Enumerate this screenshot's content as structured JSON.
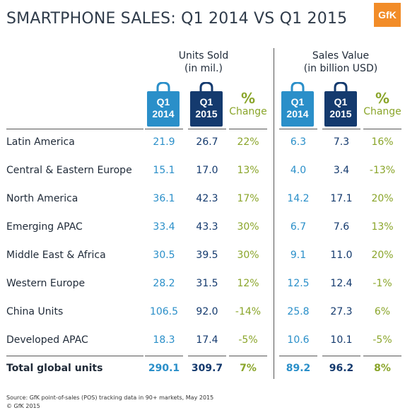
{
  "title": "SMARTPHONE SALES: Q1 2014 VS Q1 2015",
  "logo_text": "GfK",
  "colors": {
    "q1_2014": "#2a8fc9",
    "q1_2015": "#143a6e",
    "change": "#8aa52a",
    "logo": "#f28c28"
  },
  "groups": [
    {
      "label_line1": "Units Sold",
      "label_line2": "(in mil.)"
    },
    {
      "label_line1": "Sales Value",
      "label_line2": "(in billion USD)"
    }
  ],
  "column_headers": {
    "q1_2014": {
      "line1": "Q1",
      "line2": "2014"
    },
    "q1_2015": {
      "line1": "Q1",
      "line2": "2015"
    },
    "change": {
      "symbol": "%",
      "label": "Change"
    }
  },
  "chart_data": {
    "type": "table",
    "title": "SMARTPHONE SALES: Q1 2014 VS Q1 2015",
    "columns": [
      "Units Sold Q1 2014",
      "Units Sold Q1 2015",
      "Units Sold % Change",
      "Sales Value Q1 2014",
      "Sales Value Q1 2015",
      "Sales Value % Change"
    ],
    "rows": [
      {
        "region": "Latin America",
        "units_2014": "21.9",
        "units_2015": "26.7",
        "units_change": "22%",
        "value_2014": "6.3",
        "value_2015": "7.3",
        "value_change": "16%"
      },
      {
        "region": "Central & Eastern Europe",
        "units_2014": "15.1",
        "units_2015": "17.0",
        "units_change": "13%",
        "value_2014": "4.0",
        "value_2015": "3.4",
        "value_change": "-13%"
      },
      {
        "region": "North America",
        "units_2014": "36.1",
        "units_2015": "42.3",
        "units_change": "17%",
        "value_2014": "14.2",
        "value_2015": "17.1",
        "value_change": "20%"
      },
      {
        "region": "Emerging APAC",
        "units_2014": "33.4",
        "units_2015": "43.3",
        "units_change": "30%",
        "value_2014": "6.7",
        "value_2015": "7.6",
        "value_change": "13%"
      },
      {
        "region": "Middle East & Africa",
        "units_2014": "30.5",
        "units_2015": "39.5",
        "units_change": "30%",
        "value_2014": "9.1",
        "value_2015": "11.0",
        "value_change": "20%"
      },
      {
        "region": "Western Europe",
        "units_2014": "28.2",
        "units_2015": "31.5",
        "units_change": "12%",
        "value_2014": "12.5",
        "value_2015": "12.4",
        "value_change": "-1%"
      },
      {
        "region": "China Units",
        "units_2014": "106.5",
        "units_2015": "92.0",
        "units_change": "-14%",
        "value_2014": "25.8",
        "value_2015": "27.3",
        "value_change": "6%"
      },
      {
        "region": "Developed APAC",
        "units_2014": "18.3",
        "units_2015": "17.4",
        "units_change": "-5%",
        "value_2014": "10.6",
        "value_2015": "10.1",
        "value_change": "-5%"
      }
    ],
    "total": {
      "region": "Total global units",
      "units_2014": "290.1",
      "units_2015": "309.7",
      "units_change": "7%",
      "value_2014": "89.2",
      "value_2015": "96.2",
      "value_change": "8%"
    }
  },
  "source_line1": "Source: GfK point-of-sales (POS) tracking data in 90+ markets, May 2015",
  "source_line2": "© GfK 2015"
}
